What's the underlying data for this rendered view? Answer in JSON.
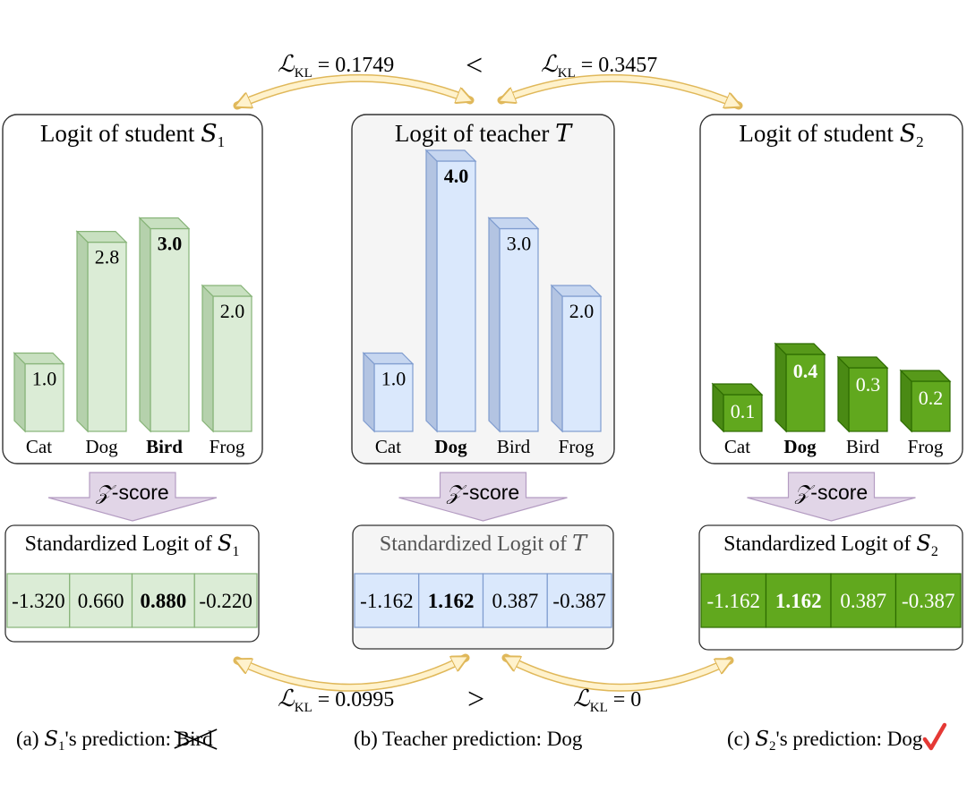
{
  "colors": {
    "green_light_fill": "#dbecd6",
    "green_light_side": "#b5d1ac",
    "green_light_top": "#c8e0c0",
    "green_light_stroke": "#86b377",
    "blue_light_fill": "#dae8fc",
    "blue_light_side": "#b3c4e2",
    "blue_light_top": "#c6d6f0",
    "blue_light_stroke": "#7f9ccf",
    "green_dark_fill": "#61a81e",
    "green_dark_side": "#4a8a14",
    "green_dark_top": "#57991a",
    "green_dark_stroke": "#2d6b00",
    "teacher_panel_bg": "#f5f5f5",
    "zscore_arrow": "#e1d5e7",
    "zscore_arrow_stroke": "#b49cc2",
    "kl_arrow": "#fff2cc",
    "kl_arrow_stroke": "#e0b85a",
    "check_mark": "#e53935"
  },
  "kl_top": {
    "left_label": "0.1749",
    "comparator": "<",
    "right_label": "0.3457"
  },
  "kl_bottom": {
    "left_label": "0.0995",
    "comparator": ">",
    "right_label": "0"
  },
  "zscore_label": "-score",
  "panels": [
    {
      "id": "student1",
      "title": "Logit of student ",
      "title_symbol": "S",
      "title_subscript": "1",
      "standardized_title": "Standardized Logit of ",
      "standardized_symbol": "S",
      "standardized_subscript": "1",
      "chart_data": {
        "type": "bar",
        "categories": [
          "Cat",
          "Dog",
          "Bird",
          "Frog"
        ],
        "values": [
          1.0,
          2.8,
          3.0,
          2.0
        ],
        "value_labels": [
          "1.0",
          "2.8",
          "3.0",
          "2.0"
        ],
        "highlight_index": 2
      },
      "standardized_values": [
        "-1.320",
        "0.660",
        "0.880",
        "-0.220"
      ],
      "standardized_highlight_index": 2
    },
    {
      "id": "teacher",
      "title": "Logit of teacher ",
      "title_symbol": "T",
      "title_subscript": "",
      "standardized_title": "Standardized Logit of ",
      "standardized_symbol": "T",
      "standardized_subscript": "",
      "chart_data": {
        "type": "bar",
        "categories": [
          "Cat",
          "Dog",
          "Bird",
          "Frog"
        ],
        "values": [
          1.0,
          4.0,
          3.0,
          2.0
        ],
        "value_labels": [
          "1.0",
          "4.0",
          "3.0",
          "2.0"
        ],
        "highlight_index": 1
      },
      "standardized_values": [
        "-1.162",
        "1.162",
        "0.387",
        "-0.387"
      ],
      "standardized_highlight_index": 1
    },
    {
      "id": "student2",
      "title": "Logit of student ",
      "title_symbol": "S",
      "title_subscript": "2",
      "standardized_title": "Standardized Logit of ",
      "standardized_symbol": "S",
      "standardized_subscript": "2",
      "chart_data": {
        "type": "bar",
        "categories": [
          "Cat",
          "Dog",
          "Bird",
          "Frog"
        ],
        "values": [
          0.1,
          0.4,
          0.3,
          0.2
        ],
        "value_labels": [
          "0.1",
          "0.4",
          "0.3",
          "0.2"
        ],
        "highlight_index": 1
      },
      "standardized_values": [
        "-1.162",
        "1.162",
        "0.387",
        "-0.387"
      ],
      "standardized_highlight_index": 1
    }
  ],
  "captions": {
    "a_prefix": "(a) ",
    "a_symbol": "S",
    "a_subscript": "1",
    "a_suffix": "'s prediction: ",
    "a_prediction": "Bird",
    "b_text": "(b) Teacher prediction: Dog",
    "c_prefix": "(c) ",
    "c_symbol": "S",
    "c_subscript": "2",
    "c_suffix": "'s prediction: ",
    "c_prediction": "Dog"
  }
}
